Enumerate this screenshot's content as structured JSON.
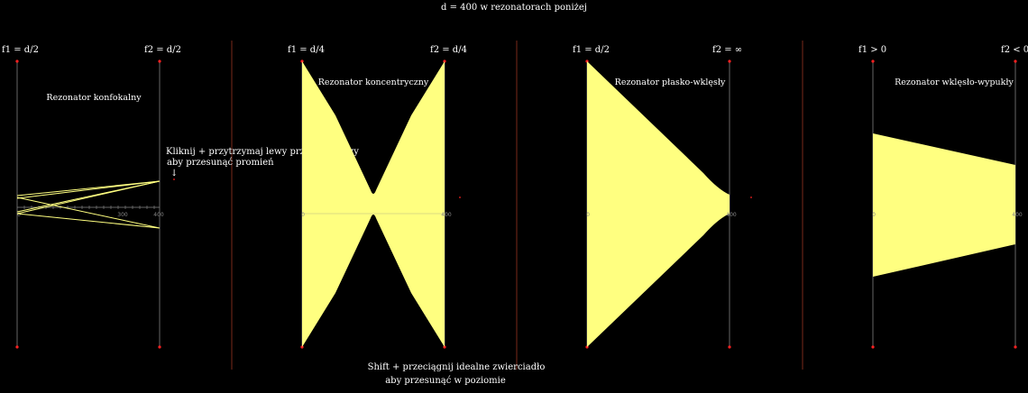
{
  "header": "d = 400 w rezonatorach poniżej",
  "footer": {
    "line1": "Shift + przeciągnij idealne zwierciadło",
    "line2": "aby przesunąć w poziomie"
  },
  "hint": {
    "line1": "Kliknij + przytrzymaj lewy przycisk myszy",
    "line2": "aby przesunąć promień",
    "arrow": "↓"
  },
  "panels": [
    {
      "title": "Rezonator konfokalny",
      "f1": "f1 = d/2",
      "f2": "f2 = d/2",
      "axis_start": "0",
      "axis_mid": "300",
      "axis_end": "400"
    },
    {
      "title": "Rezonator koncentryczny",
      "f1": "f1 = d/4",
      "f2": "f2 = d/4",
      "axis_start": "0",
      "axis_end": "400"
    },
    {
      "title": "Rezonator płasko-wklęsły",
      "f1": "f1 = d/2",
      "f2": "f2 = ∞",
      "axis_start": "0",
      "axis_end": "400"
    },
    {
      "title": "Rezonator wklęsło-wypukły",
      "f1": "f1 > 0",
      "f2": "f2 < 0",
      "axis_start": "0",
      "axis_end": "400"
    }
  ],
  "colors": {
    "beam": "#ffff80",
    "mirror": "#666666",
    "divider": "#7a2a1a",
    "endpoint": "#ff2020"
  }
}
